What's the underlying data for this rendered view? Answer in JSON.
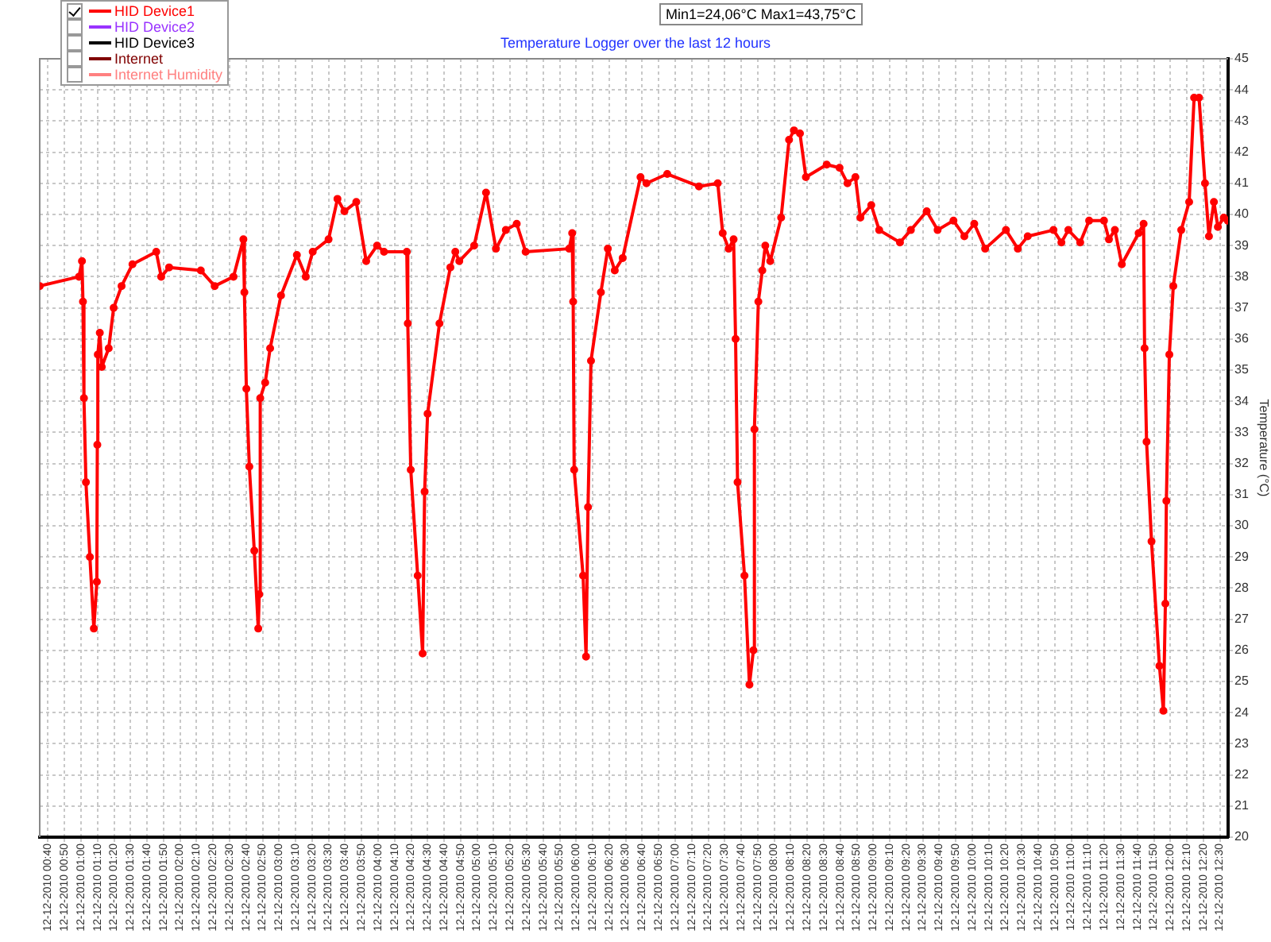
{
  "chart_data": {
    "type": "line",
    "title": "Temperature Logger over the last 12 hours",
    "ylabel": "Temperature (°C)",
    "annotations": [
      "Min1=24,06°C Max1=43,75°C"
    ],
    "xlim": [
      "2010-12-12T00:35",
      "2010-12-12T12:35"
    ],
    "ylim": [
      20,
      45
    ],
    "xticks": [
      {
        "value": "2010-12-12T00:40",
        "label": "12-12-2010 00:40"
      },
      {
        "value": "2010-12-12T00:50",
        "label": "12-12-2010 00:50"
      },
      {
        "value": "2010-12-12T01:00",
        "label": "12-12-2010 01:00"
      },
      {
        "value": "2010-12-12T01:10",
        "label": "12-12-2010 01:10"
      },
      {
        "value": "2010-12-12T01:20",
        "label": "12-12-2010 01:20"
      },
      {
        "value": "2010-12-12T01:30",
        "label": "12-12-2010 01:30"
      },
      {
        "value": "2010-12-12T01:40",
        "label": "12-12-2010 01:40"
      },
      {
        "value": "2010-12-12T01:50",
        "label": "12-12-2010 01:50"
      },
      {
        "value": "2010-12-12T02:00",
        "label": "12-12-2010 02:00"
      },
      {
        "value": "2010-12-12T02:10",
        "label": "12-12-2010 02:10"
      },
      {
        "value": "2010-12-12T02:20",
        "label": "12-12-2010 02:20"
      },
      {
        "value": "2010-12-12T02:30",
        "label": "12-12-2010 02:30"
      },
      {
        "value": "2010-12-12T02:40",
        "label": "12-12-2010 02:40"
      },
      {
        "value": "2010-12-12T02:50",
        "label": "12-12-2010 02:50"
      },
      {
        "value": "2010-12-12T03:00",
        "label": "12-12-2010 03:00"
      },
      {
        "value": "2010-12-12T03:10",
        "label": "12-12-2010 03:10"
      },
      {
        "value": "2010-12-12T03:20",
        "label": "12-12-2010 03:20"
      },
      {
        "value": "2010-12-12T03:30",
        "label": "12-12-2010 03:30"
      },
      {
        "value": "2010-12-12T03:40",
        "label": "12-12-2010 03:40"
      },
      {
        "value": "2010-12-12T03:50",
        "label": "12-12-2010 03:50"
      },
      {
        "value": "2010-12-12T04:00",
        "label": "12-12-2010 04:00"
      },
      {
        "value": "2010-12-12T04:10",
        "label": "12-12-2010 04:10"
      },
      {
        "value": "2010-12-12T04:20",
        "label": "12-12-2010 04:20"
      },
      {
        "value": "2010-12-12T04:30",
        "label": "12-12-2010 04:30"
      },
      {
        "value": "2010-12-12T04:40",
        "label": "12-12-2010 04:40"
      },
      {
        "value": "2010-12-12T04:50",
        "label": "12-12-2010 04:50"
      },
      {
        "value": "2010-12-12T05:00",
        "label": "12-12-2010 05:00"
      },
      {
        "value": "2010-12-12T05:10",
        "label": "12-12-2010 05:10"
      },
      {
        "value": "2010-12-12T05:20",
        "label": "12-12-2010 05:20"
      },
      {
        "value": "2010-12-12T05:30",
        "label": "12-12-2010 05:30"
      },
      {
        "value": "2010-12-12T05:40",
        "label": "12-12-2010 05:40"
      },
      {
        "value": "2010-12-12T05:50",
        "label": "12-12-2010 05:50"
      },
      {
        "value": "2010-12-12T06:00",
        "label": "12-12-2010 06:00"
      },
      {
        "value": "2010-12-12T06:10",
        "label": "12-12-2010 06:10"
      },
      {
        "value": "2010-12-12T06:20",
        "label": "12-12-2010 06:20"
      },
      {
        "value": "2010-12-12T06:30",
        "label": "12-12-2010 06:30"
      },
      {
        "value": "2010-12-12T06:40",
        "label": "12-12-2010 06:40"
      },
      {
        "value": "2010-12-12T06:50",
        "label": "12-12-2010 06:50"
      },
      {
        "value": "2010-12-12T07:00",
        "label": "12-12-2010 07:00"
      },
      {
        "value": "2010-12-12T07:10",
        "label": "12-12-2010 07:10"
      },
      {
        "value": "2010-12-12T07:20",
        "label": "12-12-2010 07:20"
      },
      {
        "value": "2010-12-12T07:30",
        "label": "12-12-2010 07:30"
      },
      {
        "value": "2010-12-12T07:40",
        "label": "12-12-2010 07:40"
      },
      {
        "value": "2010-12-12T07:50",
        "label": "12-12-2010 07:50"
      },
      {
        "value": "2010-12-12T08:00",
        "label": "12-12-2010 08:00"
      },
      {
        "value": "2010-12-12T08:10",
        "label": "12-12-2010 08:10"
      },
      {
        "value": "2010-12-12T08:20",
        "label": "12-12-2010 08:20"
      },
      {
        "value": "2010-12-12T08:30",
        "label": "12-12-2010 08:30"
      },
      {
        "value": "2010-12-12T08:40",
        "label": "12-12-2010 08:40"
      },
      {
        "value": "2010-12-12T08:50",
        "label": "12-12-2010 08:50"
      },
      {
        "value": "2010-12-12T09:00",
        "label": "12-12-2010 09:00"
      },
      {
        "value": "2010-12-12T09:10",
        "label": "12-12-2010 09:10"
      },
      {
        "value": "2010-12-12T09:20",
        "label": "12-12-2010 09:20"
      },
      {
        "value": "2010-12-12T09:30",
        "label": "12-12-2010 09:30"
      },
      {
        "value": "2010-12-12T09:40",
        "label": "12-12-2010 09:40"
      },
      {
        "value": "2010-12-12T09:50",
        "label": "12-12-2010 09:50"
      },
      {
        "value": "2010-12-12T10:00",
        "label": "12-12-2010 10:00"
      },
      {
        "value": "2010-12-12T10:10",
        "label": "12-12-2010 10:10"
      },
      {
        "value": "2010-12-12T10:20",
        "label": "12-12-2010 10:20"
      },
      {
        "value": "2010-12-12T10:30",
        "label": "12-12-2010 10:30"
      },
      {
        "value": "2010-12-12T10:40",
        "label": "12-12-2010 10:40"
      },
      {
        "value": "2010-12-12T10:50",
        "label": "12-12-2010 10:50"
      },
      {
        "value": "2010-12-12T11:00",
        "label": "12-12-2010 11:00"
      },
      {
        "value": "2010-12-12T11:10",
        "label": "12-12-2010 11:10"
      },
      {
        "value": "2010-12-12T11:20",
        "label": "12-12-2010 11:20"
      },
      {
        "value": "2010-12-12T11:30",
        "label": "12-12-2010 11:30"
      },
      {
        "value": "2010-12-12T11:40",
        "label": "12-12-2010 11:40"
      },
      {
        "value": "2010-12-12T11:50",
        "label": "12-12-2010 11:50"
      },
      {
        "value": "2010-12-12T12:00",
        "label": "12-12-2010 12:00"
      },
      {
        "value": "2010-12-12T12:10",
        "label": "12-12-2010 12:10"
      },
      {
        "value": "2010-12-12T12:20",
        "label": "12-12-2010 12:20"
      },
      {
        "value": "2010-12-12T12:30",
        "label": "12-12-2010 12:30"
      }
    ],
    "yticks": [
      20,
      21,
      22,
      23,
      24,
      25,
      26,
      27,
      28,
      29,
      30,
      31,
      32,
      33,
      34,
      35,
      36,
      37,
      38,
      39,
      40,
      41,
      42,
      43,
      44,
      45
    ],
    "grid": true,
    "legend": "top left",
    "marker": "circle",
    "line_style": "solid",
    "series": [
      {
        "name": "HID Device1",
        "color": "#ff0000",
        "x": [
          "2010-12-12T00:35",
          "2010-12-12T00:58:48",
          "2010-12-12T01:00:36",
          "2010-12-12T01:01:12",
          "2010-12-12T01:01:48",
          "2010-12-12T01:03:00",
          "2010-12-12T01:05:24",
          "2010-12-12T01:07:48",
          "2010-12-12T01:09:36",
          "2010-12-12T01:09:54",
          "2010-12-12T01:10:12",
          "2010-12-12T01:11:24",
          "2010-12-12T01:12:36",
          "2010-12-12T01:16:48",
          "2010-12-12T01:19:48",
          "2010-12-12T01:24:36",
          "2010-12-12T01:31:12",
          "2010-12-12T01:45:36",
          "2010-12-12T01:48:36",
          "2010-12-12T01:53:24",
          "2010-12-12T02:12:36",
          "2010-12-12T02:21:00",
          "2010-12-12T02:32:24",
          "2010-12-12T02:38:24",
          "2010-12-12T02:39:00",
          "2010-12-12T02:40:12",
          "2010-12-12T02:42:00",
          "2010-12-12T02:45:00",
          "2010-12-12T02:47:24",
          "2010-12-12T02:48:00",
          "2010-12-12T02:48:36",
          "2010-12-12T02:51:36",
          "2010-12-12T02:54:36",
          "2010-12-12T03:01:12",
          "2010-12-12T03:10:48",
          "2010-12-12T03:16:12",
          "2010-12-12T03:20:24",
          "2010-12-12T03:30:00",
          "2010-12-12T03:35:24",
          "2010-12-12T03:39:36",
          "2010-12-12T03:46:48",
          "2010-12-12T03:52:48",
          "2010-12-12T03:59:24",
          "2010-12-12T04:03:36",
          "2010-12-12T04:17:24",
          "2010-12-12T04:18:00",
          "2010-12-12T04:19:48",
          "2010-12-12T04:24:00",
          "2010-12-12T04:27:00",
          "2010-12-12T04:28:12",
          "2010-12-12T04:30:00",
          "2010-12-12T04:37:12",
          "2010-12-12T04:43:48",
          "2010-12-12T04:46:48",
          "2010-12-12T04:49:12",
          "2010-12-12T04:58:12",
          "2010-12-12T05:05:24",
          "2010-12-12T05:11:24",
          "2010-12-12T05:17:24",
          "2010-12-12T05:24:00",
          "2010-12-12T05:29:24",
          "2010-12-12T05:55:48",
          "2010-12-12T05:57:36",
          "2010-12-12T05:58:12",
          "2010-12-12T05:58:48",
          "2010-12-12T06:04:12",
          "2010-12-12T06:06:00",
          "2010-12-12T06:07:12",
          "2010-12-12T06:09:00",
          "2010-12-12T06:15:00",
          "2010-12-12T06:19:12",
          "2010-12-12T06:23:24",
          "2010-12-12T06:28:12",
          "2010-12-12T06:39:00",
          "2010-12-12T06:42:36",
          "2010-12-12T06:55:12",
          "2010-12-12T07:14:24",
          "2010-12-12T07:25:48",
          "2010-12-12T07:28:48",
          "2010-12-12T07:32:24",
          "2010-12-12T07:35:24",
          "2010-12-12T07:36:36",
          "2010-12-12T07:37:48",
          "2010-12-12T07:42:00",
          "2010-12-12T07:45:00",
          "2010-12-12T07:47:24",
          "2010-12-12T07:48:00",
          "2010-12-12T07:50:24",
          "2010-12-12T07:52:48",
          "2010-12-12T07:54:36",
          "2010-12-12T07:57:36",
          "2010-12-12T08:04:12",
          "2010-12-12T08:09:00",
          "2010-12-12T08:12:00",
          "2010-12-12T08:15:36",
          "2010-12-12T08:19:12",
          "2010-12-12T08:31:48",
          "2010-12-12T08:39:36",
          "2010-12-12T08:44:24",
          "2010-12-12T08:49:12",
          "2010-12-12T08:52:12",
          "2010-12-12T08:58:48",
          "2010-12-12T09:03:36",
          "2010-12-12T09:16:12",
          "2010-12-12T09:22:48",
          "2010-12-12T09:32:24",
          "2010-12-12T09:39:00",
          "2010-12-12T09:48:36",
          "2010-12-12T09:55:12",
          "2010-12-12T10:01:12",
          "2010-12-12T10:07:48",
          "2010-12-12T10:20:24",
          "2010-12-12T10:27:36",
          "2010-12-12T10:33:36",
          "2010-12-12T10:49:12",
          "2010-12-12T10:54:00",
          "2010-12-12T10:58:12",
          "2010-12-12T11:05:24",
          "2010-12-12T11:10:48",
          "2010-12-12T11:19:48",
          "2010-12-12T11:22:48",
          "2010-12-12T11:26:24",
          "2010-12-12T11:30:36",
          "2010-12-12T11:40:48",
          "2010-12-12T11:43:48",
          "2010-12-12T11:44:24",
          "2010-12-12T11:45:36",
          "2010-12-12T11:48:36",
          "2010-12-12T11:53:24",
          "2010-12-12T11:55:48",
          "2010-12-12T11:57:00",
          "2010-12-12T11:57:36",
          "2010-12-12T11:59:24",
          "2010-12-12T12:01:48",
          "2010-12-12T12:06:36",
          "2010-12-12T12:11:24",
          "2010-12-12T12:14:24",
          "2010-12-12T12:17:24",
          "2010-12-12T12:21:00",
          "2010-12-12T12:23:24",
          "2010-12-12T12:26:24",
          "2010-12-12T12:28:48",
          "2010-12-12T12:32:24",
          "2010-12-12T12:34:48"
        ],
        "values": [
          37.7,
          38.0,
          38.5,
          37.2,
          34.1,
          31.4,
          29.0,
          26.7,
          28.2,
          32.6,
          35.5,
          36.2,
          35.1,
          35.7,
          37.0,
          37.7,
          38.4,
          38.8,
          38.0,
          38.3,
          38.2,
          37.7,
          38.0,
          39.2,
          37.5,
          34.4,
          31.9,
          29.2,
          26.7,
          27.8,
          34.1,
          34.6,
          35.7,
          37.4,
          38.7,
          38.0,
          38.8,
          39.2,
          40.5,
          40.1,
          40.4,
          38.5,
          39.0,
          38.8,
          38.8,
          36.5,
          31.8,
          28.4,
          25.9,
          31.1,
          33.6,
          36.5,
          38.3,
          38.8,
          38.5,
          39.0,
          40.7,
          38.9,
          39.5,
          39.7,
          38.8,
          38.9,
          39.4,
          37.2,
          31.8,
          28.4,
          25.8,
          30.6,
          35.3,
          37.5,
          38.9,
          38.2,
          38.6,
          41.2,
          41.0,
          41.3,
          40.9,
          41.0,
          39.4,
          38.9,
          39.2,
          36.0,
          31.4,
          28.4,
          24.9,
          26.0,
          33.1,
          37.2,
          38.2,
          39.0,
          38.5,
          39.9,
          42.4,
          42.7,
          42.6,
          41.2,
          41.6,
          41.5,
          41.0,
          41.2,
          39.9,
          40.3,
          39.5,
          39.1,
          39.5,
          40.1,
          39.5,
          39.8,
          39.3,
          39.7,
          38.9,
          39.5,
          38.9,
          39.3,
          39.5,
          39.1,
          39.5,
          39.1,
          39.8,
          39.8,
          39.2,
          39.5,
          38.4,
          39.4,
          39.7,
          35.7,
          32.7,
          29.5,
          25.5,
          24.06,
          27.5,
          30.8,
          35.5,
          37.7,
          39.5,
          40.4,
          43.75,
          43.75,
          41.0,
          39.3,
          40.4,
          39.6,
          39.9,
          39.8
        ]
      },
      {
        "name": "HID Device2",
        "color": "#9933ff"
      },
      {
        "name": "HID Device3",
        "color": "#000000"
      },
      {
        "name": "Internet",
        "color": "#800000"
      },
      {
        "name": "Internet Humidity",
        "color": "#ff8080"
      }
    ]
  }
}
